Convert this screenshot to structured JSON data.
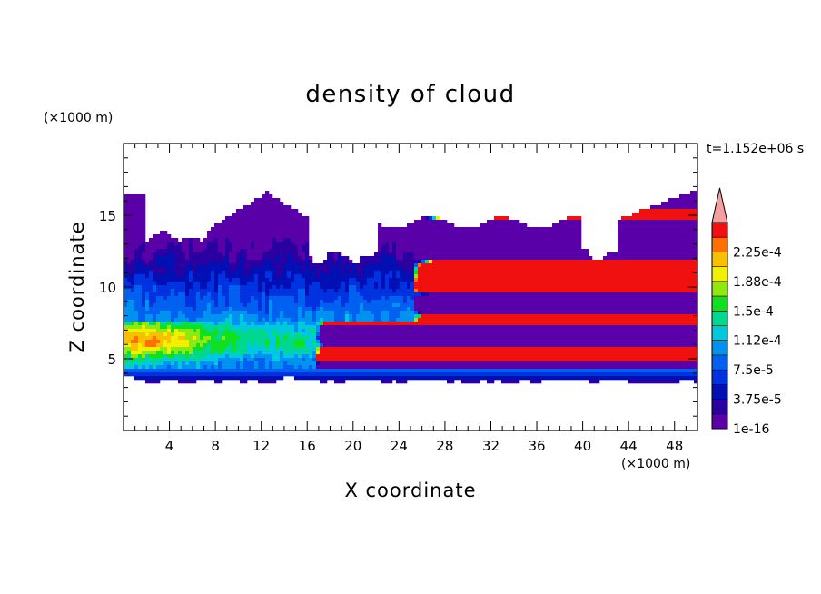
{
  "chart_data": {
    "type": "heatmap",
    "title": "density of cloud",
    "xlabel": "X coordinate",
    "ylabel": "Z coordinate",
    "x_unit": "(×1000 m)",
    "y_unit": "(×1000 m)",
    "time_label": "t=1.152e+06 s",
    "xlim": [
      0,
      50
    ],
    "ylim": [
      0,
      20
    ],
    "x_ticks": [
      "4",
      "8",
      "12",
      "16",
      "20",
      "24",
      "28",
      "32",
      "36",
      "40",
      "44",
      "48"
    ],
    "y_ticks": [
      "5",
      "10",
      "15"
    ],
    "colorbar": {
      "labels": [
        "1e-16",
        "3.75e-5",
        "7.5e-5",
        "1.12e-4",
        "1.5e-4",
        "1.88e-4",
        "2.25e-4"
      ],
      "levels": [
        1e-16,
        1.875e-05,
        3.75e-05,
        5.625e-05,
        7.5e-05,
        9.375e-05,
        0.000112,
        0.00013125,
        0.00015,
        0.00016875,
        0.000188,
        0.00020625,
        0.000225,
        0.00024375
      ],
      "colors": [
        "#5a00a8",
        "#2a00a0",
        "#0010b4",
        "#0032e0",
        "#0060f0",
        "#0092f0",
        "#00c8e0",
        "#00d890",
        "#10e020",
        "#90e810",
        "#f0f000",
        "#f8c000",
        "#ff7000",
        "#f01010"
      ],
      "extend_color": "#f4a0a0"
    },
    "features": {
      "cloud_base_km": 3.5,
      "high_density_layer_km": [
        5.5,
        7.5
      ],
      "peak_density_regions_x_km": [
        [
          0,
          3
        ],
        [
          29,
          33
        ],
        [
          38,
          42
        ]
      ],
      "upper_cloud_top_km": [
        14,
        17
      ],
      "grid": false
    }
  }
}
